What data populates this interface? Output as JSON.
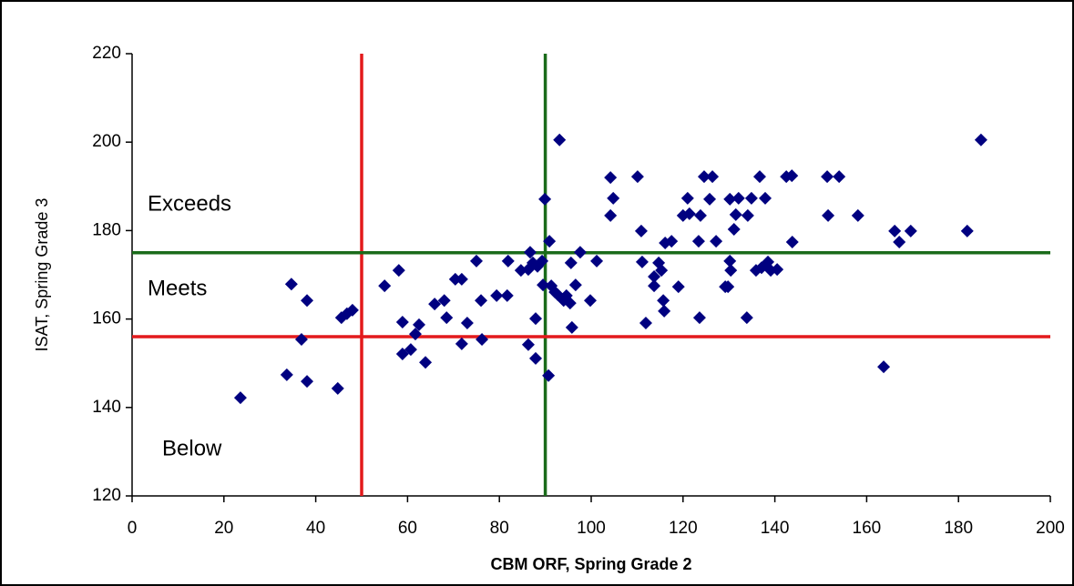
{
  "chart_data": {
    "type": "scatter",
    "x_label": "CBM ORF, Spring Grade 2",
    "y_label": "ISAT, Spring Grade 3",
    "color": "#000080",
    "xlim": [
      0,
      200
    ],
    "xticks": [
      0,
      20,
      40,
      60,
      80,
      100,
      120,
      140,
      160,
      180,
      200
    ],
    "ylim": [
      120,
      220
    ],
    "yticks": [
      120,
      140,
      160,
      180,
      200,
      220
    ],
    "grid": false,
    "reference_lines": [
      {
        "axis": "x",
        "value": 50,
        "color": "#e31a1c"
      },
      {
        "axis": "x",
        "value": 90,
        "color": "#1a6b1a"
      },
      {
        "axis": "y",
        "value": 175,
        "color": "#1a6b1a"
      },
      {
        "axis": "y",
        "value": 156,
        "color": "#e31a1c"
      }
    ],
    "annotations": [
      {
        "text": "Exceeds",
        "color": "#2e8b57"
      },
      {
        "text": "Meets",
        "color": "#2e8b57"
      },
      {
        "text": "Below",
        "color": "#e31a1c"
      }
    ],
    "x": [
      23.6,
      33.7,
      34.7,
      38.1,
      36.9,
      38.1,
      44.8,
      45.6,
      46.8,
      48.0,
      55.0,
      58.1,
      58.9,
      58.9,
      60.7,
      61.7,
      62.5,
      63.9,
      65.9,
      68.0,
      68.5,
      70.4,
      71.8,
      71.8,
      73.0,
      75.0,
      76.0,
      76.2,
      79.4,
      81.7,
      81.9,
      84.7,
      86.3,
      86.7,
      86.3,
      87.3,
      87.9,
      87.9,
      88.3,
      89.3,
      89.5,
      89.9,
      90.7,
      90.9,
      91.3,
      92.1,
      93.1,
      92.7,
      94.0,
      94.6,
      95.4,
      95.6,
      95.8,
      96.6,
      97.6,
      99.8,
      101.2,
      104.2,
      104.2,
      104.8,
      110.1,
      110.9,
      111.1,
      111.9,
      113.7,
      113.7,
      114.7,
      115.3,
      115.7,
      115.9,
      116.1,
      117.5,
      119.0,
      120.0,
      121.0,
      121.4,
      123.4,
      123.6,
      123.8,
      124.6,
      125.8,
      126.4,
      127.2,
      129.2,
      129.8,
      130.2,
      130.4,
      130.2,
      131.1,
      131.5,
      132.1,
      133.9,
      134.1,
      134.9,
      135.9,
      137.1,
      136.7,
      137.9,
      138.5,
      139.1,
      140.5,
      142.5,
      143.7,
      143.8,
      151.4,
      151.6,
      154.0,
      158.1,
      163.7,
      166.1,
      167.1,
      169.6,
      181.9,
      184.9
    ],
    "values": [
      142.2,
      147.4,
      167.9,
      164.2,
      155.4,
      145.9,
      144.3,
      160.3,
      161.2,
      162.0,
      167.5,
      171.0,
      159.3,
      152.1,
      153.1,
      156.6,
      158.7,
      150.2,
      163.4,
      164.2,
      160.3,
      169.0,
      169.0,
      154.4,
      159.1,
      173.1,
      164.2,
      155.4,
      165.3,
      165.3,
      173.1,
      171.0,
      171.2,
      175.1,
      154.2,
      172.7,
      160.1,
      151.1,
      171.9,
      173.1,
      167.7,
      187.1,
      147.2,
      177.6,
      167.5,
      166.1,
      200.5,
      165.5,
      164.2,
      165.3,
      163.6,
      172.7,
      158.1,
      167.7,
      175.1,
      164.2,
      173.1,
      192.0,
      183.4,
      187.3,
      192.2,
      179.9,
      172.9,
      159.1,
      169.6,
      167.5,
      172.7,
      171.0,
      164.2,
      161.8,
      177.2,
      177.6,
      167.3,
      183.4,
      187.3,
      183.8,
      177.6,
      160.3,
      183.4,
      192.2,
      187.1,
      192.2,
      177.6,
      167.3,
      167.3,
      173.1,
      171.0,
      187.1,
      180.3,
      183.6,
      187.3,
      160.3,
      183.4,
      187.3,
      171.0,
      171.6,
      192.2,
      187.3,
      172.9,
      171.0,
      171.2,
      192.2,
      192.4,
      177.4,
      192.2,
      183.4,
      192.2,
      183.4,
      149.2,
      179.9,
      177.4,
      179.9,
      179.9,
      200.5
    ]
  }
}
